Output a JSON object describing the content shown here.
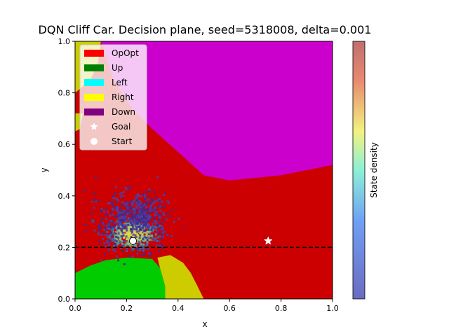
{
  "chart_data": {
    "type": "heatmap",
    "title": "DQN Cliff Car. Decision plane, seed=5318008, delta=0.001",
    "xlabel": "x",
    "ylabel": "y",
    "xlim": [
      0.0,
      1.0
    ],
    "ylim": [
      0.0,
      1.0
    ],
    "xticks": [
      "0.0",
      "0.2",
      "0.4",
      "0.6",
      "0.8",
      "1.0"
    ],
    "yticks": [
      "0.0",
      "0.2",
      "0.4",
      "0.6",
      "0.8",
      "1.0"
    ],
    "legend_position": "top-left",
    "legend": [
      {
        "label": "OpOpt",
        "color": "#ff0000",
        "kind": "patch"
      },
      {
        "label": "Up",
        "color": "#008000",
        "kind": "patch"
      },
      {
        "label": "Left",
        "color": "#00ffff",
        "kind": "patch"
      },
      {
        "label": "Right",
        "color": "#ffff00",
        "kind": "patch"
      },
      {
        "label": "Down",
        "color": "#800080",
        "kind": "patch"
      },
      {
        "label": "Goal",
        "color": "#ffffff",
        "kind": "star"
      },
      {
        "label": "Start",
        "color": "#ffffff",
        "kind": "circle"
      }
    ],
    "region_colors": {
      "opopt": "#cc0000",
      "up": "#00cc00",
      "right": "#cccc00",
      "down": "#cc00cc"
    },
    "regions": [
      {
        "action": "down",
        "polygon": [
          [
            0.1,
            1.0
          ],
          [
            0.15,
            0.85
          ],
          [
            0.22,
            0.74
          ],
          [
            0.3,
            0.66
          ],
          [
            0.4,
            0.57
          ],
          [
            0.5,
            0.48
          ],
          [
            0.6,
            0.46
          ],
          [
            0.7,
            0.47
          ],
          [
            0.8,
            0.48
          ],
          [
            0.9,
            0.5
          ],
          [
            1.0,
            0.52
          ],
          [
            1.0,
            1.0
          ]
        ]
      },
      {
        "action": "right",
        "polygon": [
          [
            0.0,
            1.0
          ],
          [
            0.1,
            1.0
          ],
          [
            0.09,
            0.92
          ],
          [
            0.06,
            0.85
          ],
          [
            0.0,
            0.8
          ]
        ]
      },
      {
        "action": "right",
        "polygon": [
          [
            0.0,
            0.72
          ],
          [
            0.03,
            0.72
          ],
          [
            0.02,
            0.66
          ],
          [
            0.0,
            0.65
          ]
        ]
      },
      {
        "action": "up",
        "polygon": [
          [
            0.0,
            0.0
          ],
          [
            0.0,
            0.1
          ],
          [
            0.06,
            0.13
          ],
          [
            0.12,
            0.15
          ],
          [
            0.2,
            0.16
          ],
          [
            0.3,
            0.155
          ],
          [
            0.33,
            0.12
          ],
          [
            0.35,
            0.05
          ],
          [
            0.35,
            0.0
          ]
        ]
      },
      {
        "action": "right",
        "polygon": [
          [
            0.35,
            0.0
          ],
          [
            0.35,
            0.05
          ],
          [
            0.33,
            0.12
          ],
          [
            0.32,
            0.16
          ],
          [
            0.37,
            0.17
          ],
          [
            0.42,
            0.14
          ],
          [
            0.45,
            0.1
          ],
          [
            0.48,
            0.04
          ],
          [
            0.5,
            0.0
          ]
        ]
      }
    ],
    "density_colorbar_label": "State density",
    "density_colormap": [
      "#0000ff",
      "#00ffff",
      "#ffff00",
      "#ff0000"
    ],
    "density_clusters": [
      {
        "center": [
          0.22,
          0.255
        ],
        "spread": [
          0.05,
          0.03
        ],
        "level": 0.15
      },
      {
        "center": [
          0.2,
          0.3
        ],
        "spread": [
          0.08,
          0.05
        ],
        "level": 0.02
      },
      {
        "center": [
          0.25,
          0.34
        ],
        "spread": [
          0.05,
          0.04
        ],
        "level": 0.01
      }
    ],
    "cliff_line_y": 0.2,
    "start": [
      0.225,
      0.225
    ],
    "goal": [
      0.75,
      0.225
    ]
  }
}
